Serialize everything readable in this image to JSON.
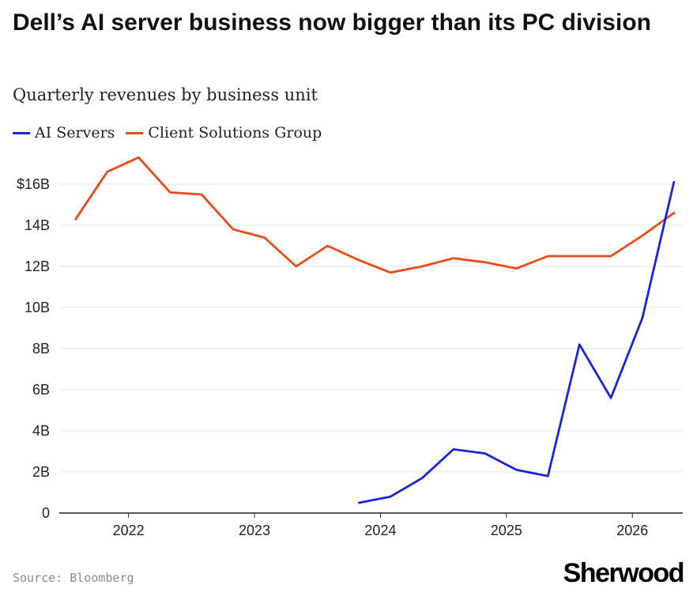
{
  "chart_data": {
    "type": "line",
    "title": "Dell’s AI server business now bigger than its PC division",
    "subtitle": "Quarterly revenues by business unit",
    "y_ticks": [
      "0",
      "2B",
      "4B",
      "6B",
      "8B",
      "10B",
      "12B",
      "14B",
      "$16B"
    ],
    "y_tick_values": [
      0,
      2,
      4,
      6,
      8,
      10,
      12,
      14,
      16
    ],
    "ylim": [
      0,
      16
    ],
    "x_ticks": [
      "2022",
      "2023",
      "2024",
      "2025",
      "2026"
    ],
    "x_tick_values": [
      2022,
      2023,
      2024,
      2025,
      2026
    ],
    "xlim": [
      2021.45,
      2026.4
    ],
    "legend": "top-left",
    "grid": true,
    "series": [
      {
        "name": "AI Servers",
        "color": "#1a24e0",
        "x": [
          2023.83,
          2024.08,
          2024.33,
          2024.58,
          2024.83,
          2025.08,
          2025.33,
          2025.58,
          2025.83,
          2026.08,
          2026.33
        ],
        "values": [
          0.5,
          0.8,
          1.7,
          3.1,
          2.9,
          2.1,
          1.8,
          8.2,
          5.6,
          9.5,
          16.1
        ]
      },
      {
        "name": "Client Solutions Group",
        "color": "#ec4a17",
        "x": [
          2021.58,
          2021.83,
          2022.08,
          2022.33,
          2022.58,
          2022.83,
          2023.08,
          2023.33,
          2023.58,
          2023.83,
          2024.08,
          2024.33,
          2024.58,
          2024.83,
          2025.08,
          2025.33,
          2025.58,
          2025.83,
          2026.08,
          2026.33
        ],
        "values": [
          14.3,
          16.6,
          17.3,
          15.6,
          15.5,
          13.8,
          13.4,
          12.0,
          13.0,
          12.3,
          11.7,
          12.0,
          12.4,
          12.2,
          11.9,
          12.5,
          12.5,
          12.5,
          13.5,
          14.6
        ]
      }
    ]
  },
  "source": "Source: Bloomberg",
  "logo": "Sherwood"
}
